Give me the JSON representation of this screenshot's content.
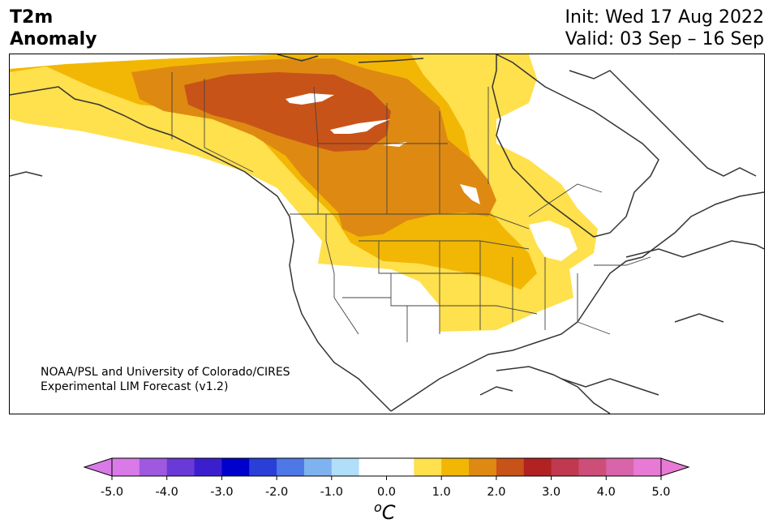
{
  "header": {
    "title_line1": "T2m",
    "title_line2": "Anomaly",
    "init": "Init: Wed 17 Aug 2022",
    "valid": "Valid: 03 Sep – 16 Sep"
  },
  "credit": {
    "line1": "NOAA/PSL and University of Colorado/CIRES",
    "line2": "Experimental LIM Forecast (v1.2)"
  },
  "colorbar": {
    "unit": "C",
    "unit_superscript": "o",
    "ticks": [
      "-5.0",
      "-4.0",
      "-3.0",
      "-2.0",
      "-1.0",
      "0.0",
      "1.0",
      "2.0",
      "3.0",
      "4.0",
      "5.0"
    ],
    "min_extend_color": "#d97ae8",
    "max_extend_color": "#e87ad6",
    "colors": [
      "#d97ae8",
      "#9e59e0",
      "#6a3ad8",
      "#3b1fcf",
      "#0000cc",
      "#2a3fd8",
      "#4d78e6",
      "#7fb3f0",
      "#b1def8",
      "#ffffff",
      "#ffffff",
      "#ffe04d",
      "#f2b705",
      "#de8a12",
      "#c85318",
      "#b22222",
      "#c0394e",
      "#cc4e79",
      "#d865a9",
      "#e87ad6"
    ]
  },
  "legend_colors": {
    "anom_1_1p5": "#ffe04d",
    "anom_1p5_2": "#f2b705",
    "anom_2_2p5": "#de8a12",
    "anom_2p5_3": "#c85318"
  }
}
